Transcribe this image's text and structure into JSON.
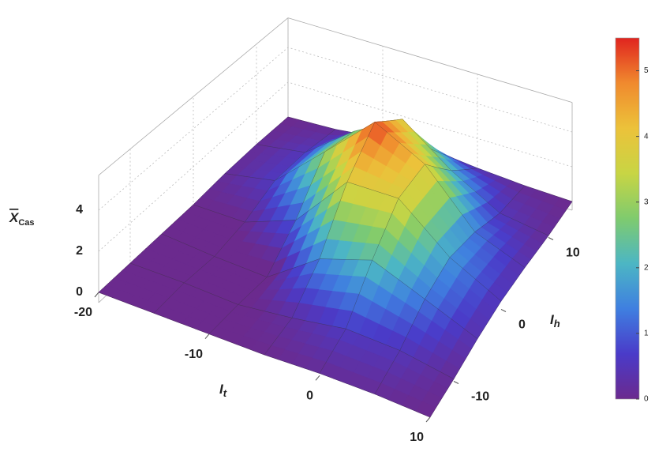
{
  "chart_data": {
    "type": "surface",
    "xlabel": "I",
    "xlabel_sub": "t",
    "ylabel": "I",
    "ylabel_sub": "h",
    "zlabel": "X",
    "zlabel_sub": "Cas",
    "x": [
      -20,
      -15,
      -10,
      -5,
      0,
      5,
      10
    ],
    "y": [
      -15,
      -10,
      -5,
      0,
      5,
      10,
      15
    ],
    "z": [
      [
        0,
        0,
        0,
        0,
        0.1,
        0.1,
        0
      ],
      [
        0,
        0,
        -0.2,
        0,
        0.6,
        0.5,
        0.1
      ],
      [
        0,
        -0.1,
        -0.3,
        1.0,
        3.0,
        2.5,
        0.4
      ],
      [
        0,
        0.2,
        1.5,
        3.8,
        5.4,
        4.0,
        0.6
      ],
      [
        0.1,
        0.6,
        2.3,
        3.8,
        4.0,
        2.0,
        0.3
      ],
      [
        0.1,
        0.5,
        1.3,
        1.7,
        1.3,
        0.5,
        0.1
      ],
      [
        0,
        0.1,
        0.3,
        0.4,
        0.3,
        0.1,
        0
      ]
    ],
    "xlim": [
      -20,
      10
    ],
    "ylim": [
      -15,
      15
    ],
    "zlim": [
      -0.5,
      5.7
    ],
    "xticks": [
      -20,
      -10,
      0,
      10
    ],
    "yticks": [
      -10,
      0,
      10
    ],
    "zticks": [
      0,
      2,
      4
    ],
    "clim": [
      0,
      5.5
    ],
    "cticks": [
      0,
      1,
      2,
      3,
      4,
      5
    ],
    "colors": [
      "#6b2a8e",
      "#4a3bc9",
      "#3f7fe0",
      "#4cb6c4",
      "#7fcb6e",
      "#c8d544",
      "#ecc23a",
      "#f08a2e",
      "#e0241f"
    ],
    "grid": true
  }
}
